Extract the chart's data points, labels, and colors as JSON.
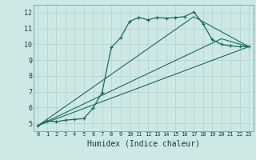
{
  "xlabel": "Humidex (Indice chaleur)",
  "background_color": "#cde8e5",
  "grid_color": "#b0d0cc",
  "line_color": "#1a6b60",
  "xlim": [
    -0.5,
    23.5
  ],
  "ylim": [
    4.5,
    12.5
  ],
  "xticks": [
    0,
    1,
    2,
    3,
    4,
    5,
    6,
    7,
    8,
    9,
    10,
    11,
    12,
    13,
    14,
    15,
    16,
    17,
    18,
    19,
    20,
    21,
    22,
    23
  ],
  "yticks": [
    5,
    6,
    7,
    8,
    9,
    10,
    11,
    12
  ],
  "line1_x": [
    0,
    1,
    2,
    3,
    4,
    5,
    6,
    7,
    8,
    9,
    10,
    11,
    12,
    13,
    14,
    15,
    16,
    17,
    18,
    19,
    20,
    21,
    22,
    23
  ],
  "line1_y": [
    4.85,
    5.15,
    5.1,
    5.2,
    5.25,
    5.3,
    5.95,
    6.95,
    9.8,
    10.4,
    11.45,
    11.7,
    11.55,
    11.7,
    11.65,
    11.7,
    11.75,
    12.05,
    11.3,
    10.3,
    10.0,
    9.9,
    9.85,
    9.85
  ],
  "line2_x": [
    0,
    23
  ],
  "line2_y": [
    4.85,
    9.85
  ],
  "line3_x": [
    0,
    23
  ],
  "line3_y": [
    4.85,
    9.85
  ],
  "line4_x": [
    0,
    17,
    23
  ],
  "line4_y": [
    4.85,
    11.75,
    9.85
  ],
  "line5_x": [
    0,
    20,
    23
  ],
  "line5_y": [
    4.85,
    10.35,
    9.85
  ]
}
